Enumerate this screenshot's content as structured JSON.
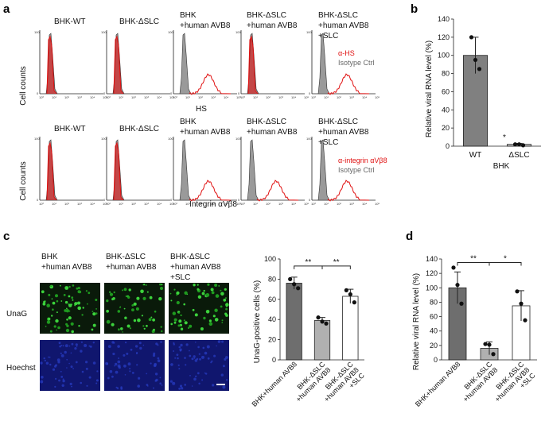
{
  "panels": {
    "a": {
      "letter": "a",
      "row1_titles": [
        "BHK-WT",
        "BHK-ΔSLC",
        "BHK",
        "+human AVB8",
        "BHK-ΔSLC",
        "+human AVB8",
        "BHK-ΔSLC",
        "+human AVB8",
        "+SLC"
      ],
      "row1_ylabel": "Cell counts",
      "row1_xlabel": "HS",
      "row1_legend": [
        "α-HS",
        "Isotype Ctrl"
      ],
      "row2_titles": [
        "BHK-WT",
        "BHK-ΔSLC",
        "BHK",
        "+human AVB8",
        "BHK-ΔSLC",
        "+human AVB8",
        "BHK-ΔSLC",
        "+human AVB8",
        "+SLC"
      ],
      "row2_ylabel": "Cell counts",
      "row2_xlabel": "Integrin αVβ8",
      "row2_legend": [
        "α-integrin αVβ8",
        "Isotype Ctrl"
      ],
      "ymax_label": "100",
      "ymin_label": "0",
      "xticks": [
        "10⁰",
        "10¹",
        "10²",
        "10³",
        "10⁴",
        "10⁵"
      ],
      "histograms_row1": [
        {
          "shift": false
        },
        {
          "shift": false
        },
        {
          "shift": true
        },
        {
          "shift": false
        },
        {
          "shift": true
        }
      ],
      "histograms_row2": [
        {
          "shift": false
        },
        {
          "shift": false
        },
        {
          "shift": true
        },
        {
          "shift": true
        },
        {
          "shift": true
        }
      ]
    },
    "b": {
      "letter": "b",
      "ylabel": "Relative viral RNA level (%)",
      "xlabel": "BHK",
      "star": "*"
    },
    "c": {
      "letter": "c",
      "col_titles": [
        "BHK",
        "+human AVB8",
        "BHK-ΔSLC",
        "+human AVB8",
        "BHK-ΔSLC",
        "+human AVB8",
        "+SLC"
      ],
      "row_labels": [
        "UnaG",
        "Hoechst"
      ],
      "ylabel": "UnaG-positive cells (%)",
      "sig": [
        "**",
        "**"
      ]
    },
    "d": {
      "letter": "d",
      "ylabel": "Relative viral RNA level (%)",
      "sig": [
        "**",
        "*"
      ]
    }
  },
  "chart_data": [
    {
      "type": "bar",
      "title": "",
      "categories": [
        "WT",
        "ΔSLC"
      ],
      "values": [
        100,
        2
      ],
      "errors": [
        20,
        1
      ],
      "points": [
        [
          120,
          95,
          85
        ],
        [
          2,
          2,
          1
        ]
      ],
      "xlabel": "BHK",
      "ylabel": "Relative viral RNA level (%)",
      "ylim": [
        0,
        140
      ],
      "yticks": [
        0,
        20,
        40,
        60,
        80,
        100,
        120,
        140
      ],
      "colors": [
        "#808080",
        "#c0c0c0"
      ]
    },
    {
      "type": "bar",
      "title": "",
      "categories": [
        "BHK+human AVB8",
        "BHK-ΔSLC +human AVB8",
        "BHK-ΔSLC +human AVB8 +SLC"
      ],
      "values": [
        76,
        39,
        63
      ],
      "errors": [
        6,
        3,
        7
      ],
      "points": [
        [
          80,
          75,
          71
        ],
        [
          42,
          38,
          36
        ],
        [
          69,
          65,
          57
        ]
      ],
      "ylabel": "UnaG-positive cells (%)",
      "ylim": [
        0,
        100
      ],
      "yticks": [
        0,
        20,
        40,
        60,
        80,
        100
      ],
      "colors": [
        "#6e6e6e",
        "#b0b0b0",
        "#ffffff"
      ]
    },
    {
      "type": "bar",
      "title": "",
      "categories": [
        "BHK+human AVB8",
        "BHK-ΔSLC +human AVB8",
        "BHK-ΔSLC +human AVB8 +SLC"
      ],
      "values": [
        100,
        16,
        75
      ],
      "errors": [
        22,
        9,
        21
      ],
      "points": [
        [
          128,
          104,
          78
        ],
        [
          22,
          21,
          8
        ],
        [
          95,
          78,
          55
        ]
      ],
      "ylabel": "Relative viral RNA level (%)",
      "ylim": [
        0,
        140
      ],
      "yticks": [
        0,
        20,
        40,
        60,
        80,
        100,
        120,
        140
      ],
      "colors": [
        "#6e6e6e",
        "#b0b0b0",
        "#ffffff"
      ]
    }
  ]
}
